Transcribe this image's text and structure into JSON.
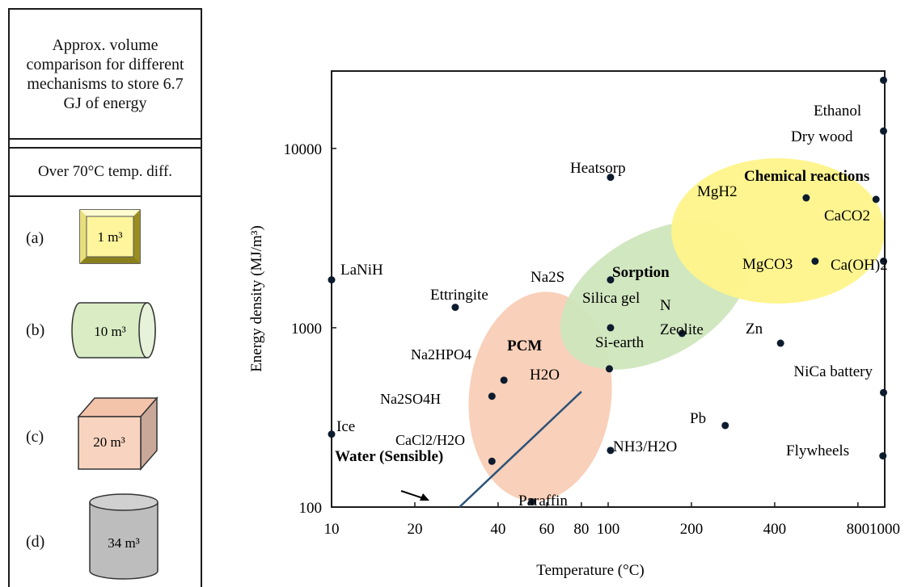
{
  "panel": {
    "title": "Approx. volume comparison for different mechanisms to store 6.7 GJ of energy",
    "subtitle": "Over 70°C temp. diff.",
    "items": [
      {
        "label": "(a)",
        "volume": "1 m³",
        "shape": "square-box",
        "color": "#fff59d"
      },
      {
        "label": "(b)",
        "volume": "10 m³",
        "shape": "cylinder-horizontal",
        "color": "#d9ecc4"
      },
      {
        "label": "(c)",
        "volume": "20 m³",
        "shape": "cube",
        "color": "#f8d4c0"
      },
      {
        "label": "(d)",
        "volume": "34 m³",
        "shape": "cylinder-vertical",
        "color": "#bdbdbd"
      }
    ]
  },
  "chart_data": {
    "type": "scatter",
    "xlabel": "Temperature (°C)",
    "ylabel": "Energy density (MJ/m³)",
    "x_scale": "log",
    "y_scale": "log",
    "xlim": [
      10,
      1000
    ],
    "ylim": [
      100,
      27000
    ],
    "x_ticks": [
      10,
      20,
      40,
      60,
      80,
      100,
      200,
      400,
      800,
      1000
    ],
    "y_ticks": [
      100,
      1000,
      10000
    ],
    "grid": false,
    "point_color": "#0d1b2e",
    "points": [
      {
        "name": "LaNiH",
        "x": 10,
        "y": 1850
      },
      {
        "name": "Ice",
        "x": 10,
        "y": 255
      },
      {
        "name": "Ettringite",
        "x": 28,
        "y": 1300
      },
      {
        "name": "Na2HPO4",
        "x": 42,
        "y": 510
      },
      {
        "name": "Na2SO4H",
        "x": 38,
        "y": 415
      },
      {
        "name": "CaCl2/H2O",
        "x": 38,
        "y": 180
      },
      {
        "name": "Paraffin",
        "x": 53,
        "y": 107
      },
      {
        "name": "Heatsorp",
        "x": 102,
        "y": 6900
      },
      {
        "name": "Na2S",
        "x": 102,
        "y": 1850
      },
      {
        "name": "Silica gel",
        "x": 102,
        "y": 1000
      },
      {
        "name": "Si-earth",
        "x": 101,
        "y": 590
      },
      {
        "name": "NH3/H2O",
        "x": 102,
        "y": 207
      },
      {
        "name": "Zeolite",
        "x": 185,
        "y": 930
      },
      {
        "name": "Zn",
        "x": 420,
        "y": 820
      },
      {
        "name": "Pb",
        "x": 265,
        "y": 285
      },
      {
        "name": "MgH2",
        "x": 520,
        "y": 5300
      },
      {
        "name": "MgCO3",
        "x": 560,
        "y": 2350
      },
      {
        "name": "CaCO2",
        "x": 930,
        "y": 5200
      },
      {
        "name": "Ca(OH)2",
        "x": 990,
        "y": 2350
      },
      {
        "name": "Ethanol",
        "x": 990,
        "y": 24000
      },
      {
        "name": "Dry wood",
        "x": 990,
        "y": 12500
      },
      {
        "name": "NiCa battery",
        "x": 990,
        "y": 435
      },
      {
        "name": "Flywheels",
        "x": 985,
        "y": 193
      }
    ],
    "regions": [
      {
        "name": "PCM",
        "color": "#f9cdb6"
      },
      {
        "name": "Sorption",
        "color": "#cfe6bd"
      },
      {
        "name": "Chemical reactions",
        "color": "#fff48a"
      }
    ],
    "sensible_line": {
      "label": "Water (Sensible)",
      "end_label": "H2O",
      "x": [
        29,
        80
      ],
      "y": [
        100,
        440
      ],
      "color": "#2c5378"
    },
    "extra_labels": [
      "N"
    ]
  }
}
